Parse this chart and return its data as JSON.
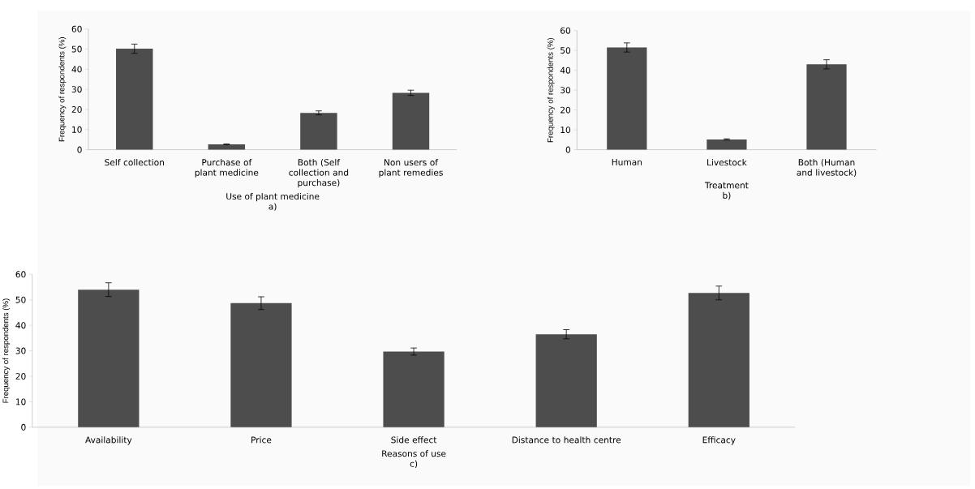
{
  "chart_data": [
    {
      "type": "bar",
      "categories": [
        "Self collection",
        "Purchase of plant medicine",
        "Both (Self collection and purchase)",
        "Non users of plant remedies"
      ],
      "values": [
        50.2,
        2.7,
        18.3,
        28.3
      ],
      "errors": [
        2.3,
        0.2,
        1,
        1.3
      ],
      "color": "#4d4d4d",
      "xlabel": "Use of plant medicine",
      "ylabel": "Frequency of respondents (%)",
      "ylim": [
        0,
        60
      ],
      "yticks": [
        0,
        10,
        20,
        30,
        40,
        50,
        60
      ],
      "annotations": [
        "a)"
      ]
    },
    {
      "type": "bar",
      "categories": [
        "Human",
        "Livestock",
        "Both (Human and livestock)"
      ],
      "values": [
        51.5,
        5.2,
        43
      ],
      "errors": [
        2.3,
        0.3,
        2.3
      ],
      "color": "#4d4d4d",
      "xlabel": "Treatment",
      "ylabel": "Frequency of respondents (%)",
      "ylim": [
        0,
        60
      ],
      "yticks": [
        0,
        10,
        20,
        30,
        40,
        50,
        60
      ],
      "annotations": [
        "b)"
      ]
    },
    {
      "type": "bar",
      "categories": [
        "Availability",
        "Price",
        "Side effect",
        "Distance to health centre",
        "Efficacy"
      ],
      "values": [
        54,
        48.7,
        29.7,
        36.5,
        52.7
      ],
      "errors": [
        2.7,
        2.5,
        1.4,
        1.8,
        2.7
      ],
      "color": "#4d4d4d",
      "xlabel": "Reasons of use",
      "ylabel": "Frequency of respondents (%)",
      "ylim": [
        0,
        60
      ],
      "yticks": [
        0,
        10,
        20,
        30,
        40,
        50,
        60
      ],
      "annotations": [
        "c)"
      ]
    }
  ]
}
